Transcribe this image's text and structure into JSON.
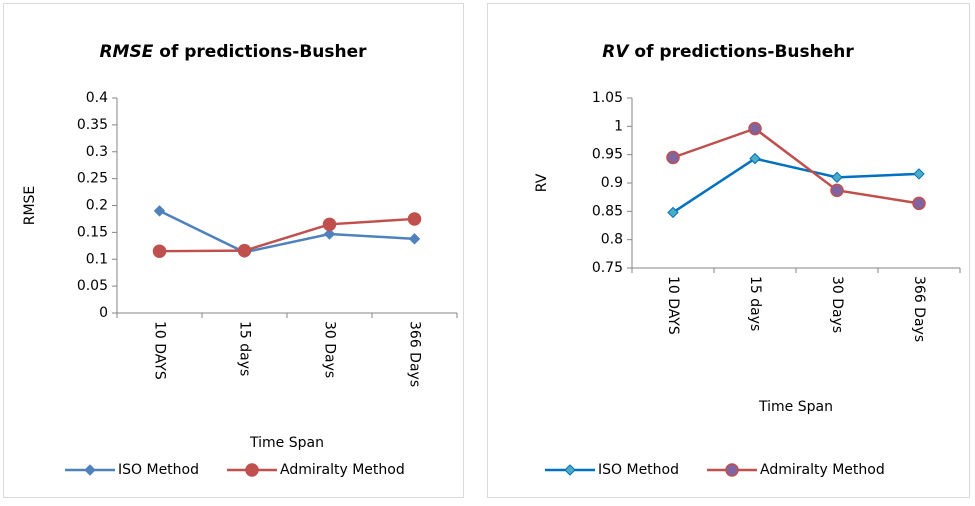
{
  "chart_data": [
    {
      "type": "line",
      "title": [
        "RMSE",
        " of predictions-Busher"
      ],
      "x_label": "Time Span",
      "y_label": "RMSE",
      "categories": [
        "10 DAYS",
        "15 days",
        "30 Days",
        "366 Days"
      ],
      "series": [
        {
          "name": "ISO Method",
          "color": "#4f81bd",
          "marker": "diamond",
          "marker_color": "#4f81bd",
          "values": [
            0.19,
            0.113,
            0.147,
            0.138
          ]
        },
        {
          "name": "Admiralty Method",
          "color": "#c0504d",
          "marker": "circle",
          "marker_color": "#c0504d",
          "values": [
            0.115,
            0.116,
            0.165,
            0.175
          ]
        }
      ],
      "ylim": [
        0,
        0.4
      ],
      "yticks": [
        0,
        0.05,
        0.1,
        0.15,
        0.2,
        0.25,
        0.3,
        0.35,
        0.4
      ],
      "legend": "bottom"
    },
    {
      "type": "line",
      "title": [
        "RV",
        " of predictions-Bushehr"
      ],
      "x_label": "Time Span",
      "y_label": "RV",
      "categories": [
        "10 DAYS",
        "15 days",
        "30 Days",
        "366 Days"
      ],
      "series": [
        {
          "name": "ISO Method",
          "color": "#0070c0",
          "marker": "diamond",
          "marker_color": "#4bacc6",
          "values": [
            0.848,
            0.943,
            0.91,
            0.916
          ]
        },
        {
          "name": "Admiralty Method",
          "color": "#c0504d",
          "marker": "circle",
          "marker_color": "#8064a2",
          "values": [
            0.945,
            0.996,
            0.887,
            0.864
          ]
        }
      ],
      "ylim": [
        0.75,
        1.05
      ],
      "yticks": [
        0.75,
        0.8,
        0.85,
        0.9,
        0.95,
        1,
        1.05
      ],
      "legend": "bottom"
    }
  ]
}
